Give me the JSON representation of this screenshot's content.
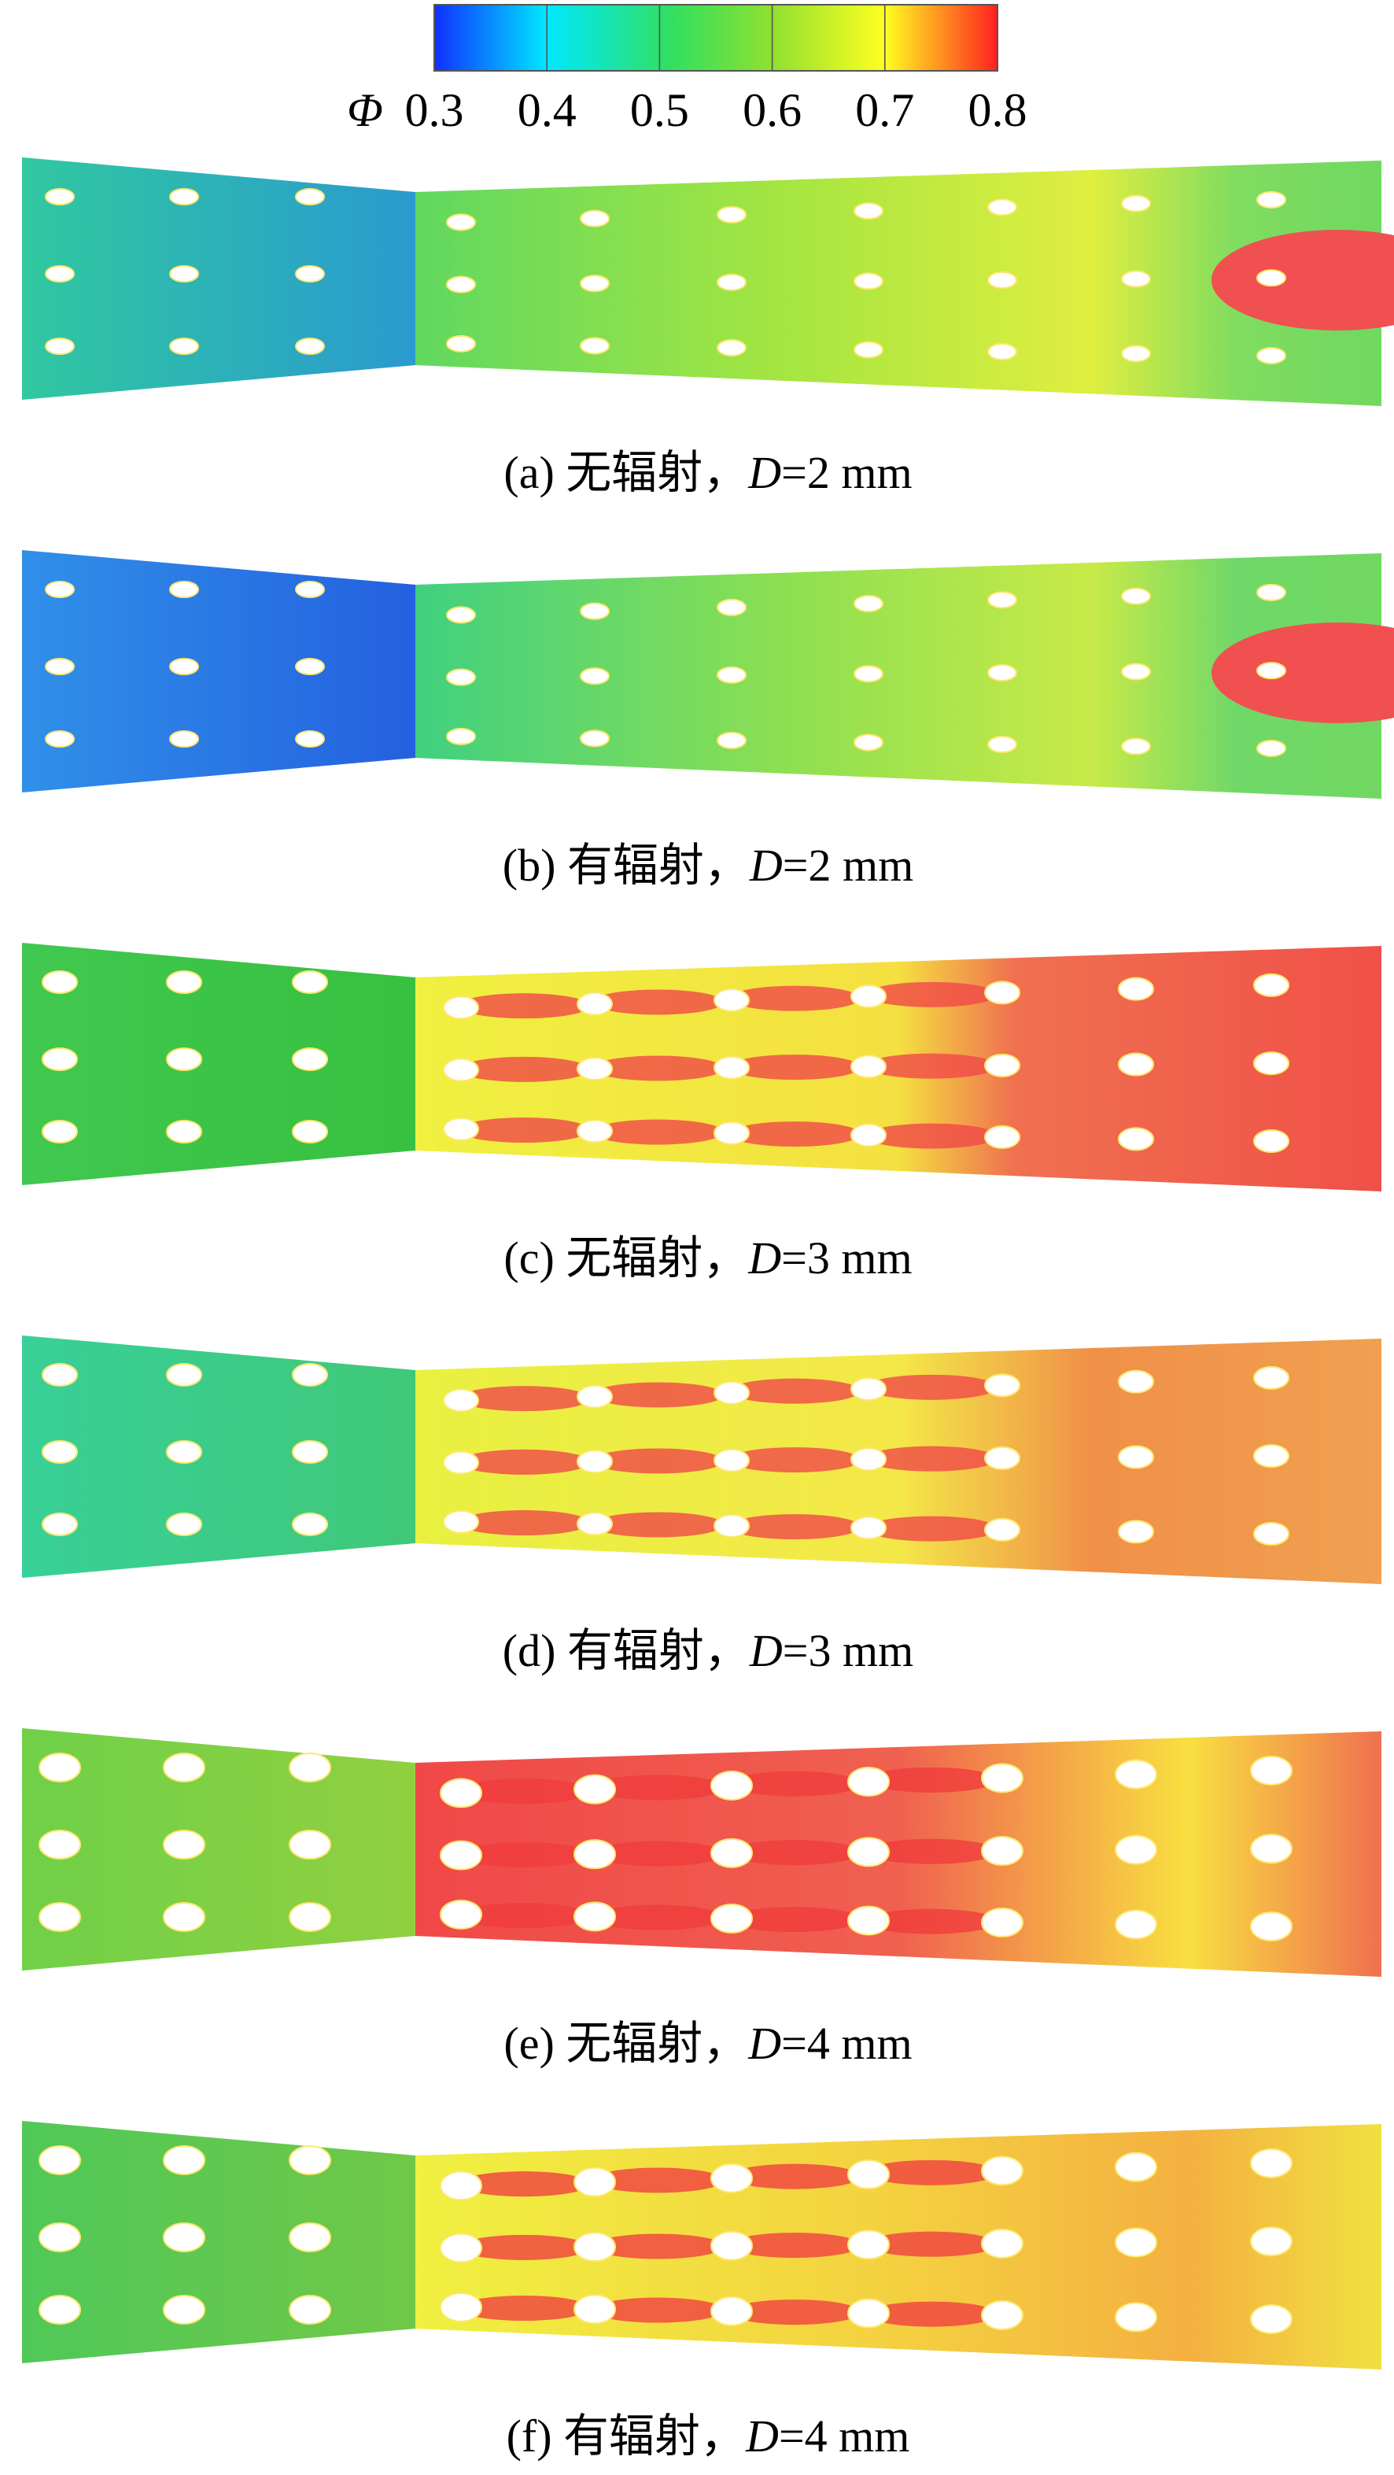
{
  "colorbar": {
    "label": "Φ",
    "lim": [
      0.3,
      0.8
    ],
    "ticks": [
      0.3,
      0.4,
      0.5,
      0.6,
      0.7,
      0.8
    ]
  },
  "panels": [
    {
      "label": "(a) 无辐射，",
      "var": "D",
      "value": "=2 mm"
    },
    {
      "label": "(b) 有辐射，",
      "var": "D",
      "value": "=2 mm"
    },
    {
      "label": "(c) 无辐射，",
      "var": "D",
      "value": "=3 mm"
    },
    {
      "label": "(d) 有辐射，",
      "var": "D",
      "value": "=3 mm"
    },
    {
      "label": "(e) 无辐射，",
      "var": "D",
      "value": "=4 mm"
    },
    {
      "label": "(f) 有辐射，",
      "var": "D",
      "value": "=4 mm"
    }
  ]
}
